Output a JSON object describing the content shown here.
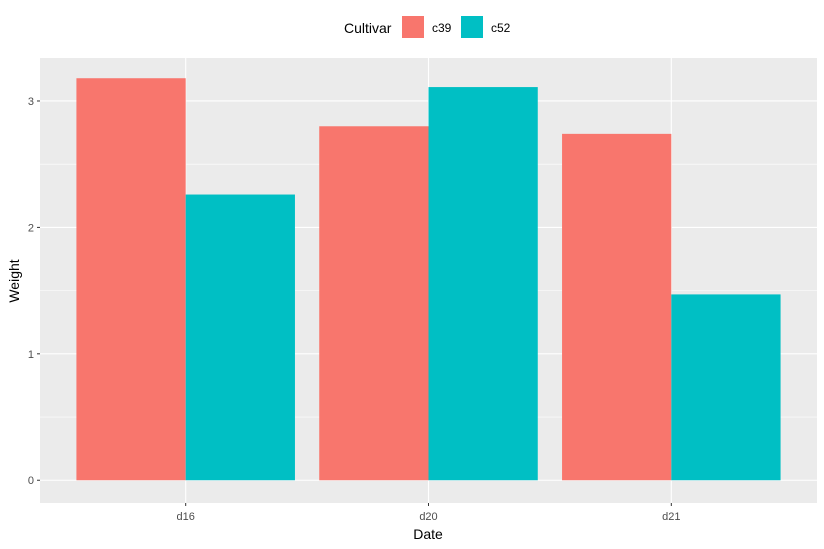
{
  "chart_data": {
    "type": "bar",
    "categories": [
      "d16",
      "d20",
      "d21"
    ],
    "series": [
      {
        "name": "c39",
        "values": [
          3.18,
          2.8,
          2.74
        ],
        "color": "#F8766D"
      },
      {
        "name": "c52",
        "values": [
          2.26,
          3.11,
          1.47
        ],
        "color": "#00BFC4"
      }
    ],
    "xlabel": "Date",
    "ylabel": "Weight",
    "ylim": [
      -0.18,
      3.34
    ],
    "yticks": [
      0,
      1,
      2,
      3
    ],
    "legend": {
      "title": "Cultivar",
      "position": "top"
    },
    "grid": true,
    "panel_background": "#EBEBEB",
    "grid_color": "#FFFFFF"
  }
}
